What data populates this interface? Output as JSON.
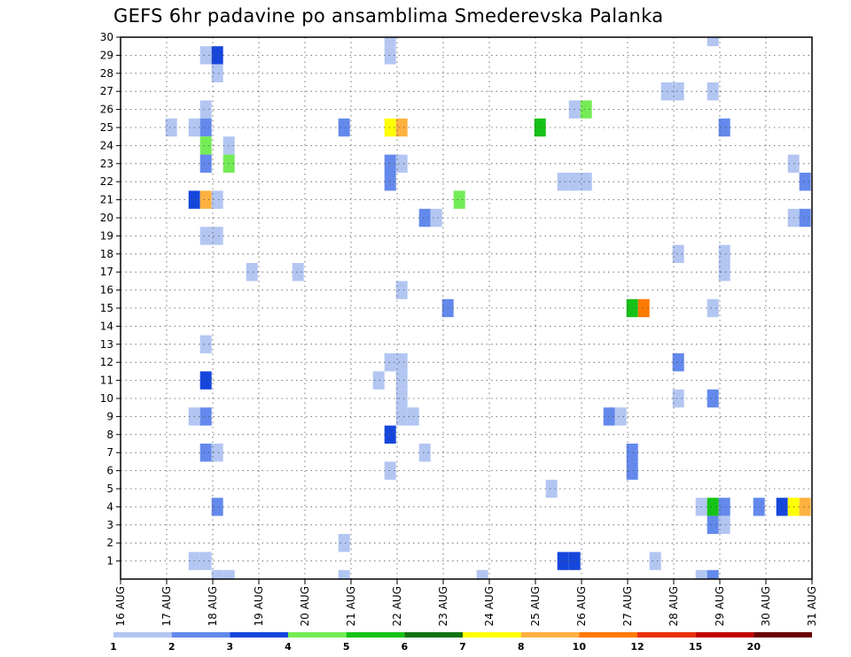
{
  "chart_data": {
    "type": "heatmap",
    "title": "GEFS 6hr padavine po ansamblima Smederevska Palanka",
    "xlabel": "",
    "ylabel": "",
    "x_ticks": [
      "16 AUG",
      "17 AUG",
      "18 AUG",
      "19 AUG",
      "20 AUG",
      "21 AUG",
      "22 AUG",
      "23 AUG",
      "24 AUG",
      "25 AUG",
      "26 AUG",
      "27 AUG",
      "28 AUG",
      "29 AUG",
      "30 AUG",
      "31 AUG"
    ],
    "y_ticks": [
      1,
      2,
      3,
      4,
      5,
      6,
      7,
      8,
      9,
      10,
      11,
      12,
      13,
      14,
      15,
      16,
      17,
      18,
      19,
      20,
      21,
      22,
      23,
      24,
      25,
      26,
      27,
      28,
      29,
      30
    ],
    "xlim_day": [
      16,
      31
    ],
    "ylim": [
      0,
      30
    ],
    "grid": true,
    "colorbar": {
      "position": "bottom",
      "levels": [
        1,
        2,
        3,
        4,
        5,
        6,
        7,
        8,
        10,
        12,
        15,
        20
      ],
      "colors": [
        "#b3c6f2",
        "#6389ec",
        "#1546dc",
        "#74ec56",
        "#15c316",
        "#127212",
        "#ffff00",
        "#ffb140",
        "#ff7a00",
        "#e8300c",
        "#c00000",
        "#6b0000"
      ],
      "labels": [
        "1",
        "2",
        "3",
        "4",
        "5",
        "6",
        "7",
        "8",
        "10",
        "12",
        "15",
        "20"
      ]
    },
    "cells": [
      {
        "day": 17.1,
        "member": 25,
        "value": 1.5
      },
      {
        "day": 17.6,
        "member": 25,
        "value": 1.5
      },
      {
        "day": 17.6,
        "member": 9,
        "value": 1.5
      },
      {
        "day": 17.6,
        "member": 1,
        "value": 1.5
      },
      {
        "day": 17.6,
        "member": 21,
        "value": 3.5
      },
      {
        "day": 17.85,
        "member": 26,
        "value": 1.5
      },
      {
        "day": 17.85,
        "member": 25,
        "value": 2.5
      },
      {
        "day": 17.85,
        "member": 24,
        "value": 4.5
      },
      {
        "day": 17.85,
        "member": 23,
        "value": 2.5
      },
      {
        "day": 17.85,
        "member": 21,
        "value": 8.5
      },
      {
        "day": 17.85,
        "member": 19,
        "value": 1.5
      },
      {
        "day": 17.85,
        "member": 13,
        "value": 1.5
      },
      {
        "day": 17.85,
        "member": 11,
        "value": 3.5
      },
      {
        "day": 17.85,
        "member": 9,
        "value": 2.5
      },
      {
        "day": 17.85,
        "member": 7,
        "value": 2.5
      },
      {
        "day": 17.85,
        "member": 1,
        "value": 1.5
      },
      {
        "day": 17.85,
        "member": 29,
        "value": 1.5
      },
      {
        "day": 18.1,
        "member": 29,
        "value": 3.5
      },
      {
        "day": 18.1,
        "member": 28,
        "value": 1.5
      },
      {
        "day": 18.1,
        "member": 21,
        "value": 1.5
      },
      {
        "day": 18.1,
        "member": 19,
        "value": 1.5
      },
      {
        "day": 18.1,
        "member": 7,
        "value": 1.5
      },
      {
        "day": 18.1,
        "member": 4,
        "value": 2.5
      },
      {
        "day": 18.1,
        "member": 0,
        "value": 1.5
      },
      {
        "day": 18.35,
        "member": 24,
        "value": 1.5
      },
      {
        "day": 18.35,
        "member": 23,
        "value": 4.5
      },
      {
        "day": 18.35,
        "member": 0,
        "value": 1.5
      },
      {
        "day": 18.85,
        "member": 17,
        "value": 1.5
      },
      {
        "day": 19.85,
        "member": 17,
        "value": 1.5
      },
      {
        "day": 20.85,
        "member": 25,
        "value": 2.5
      },
      {
        "day": 20.85,
        "member": 2,
        "value": 1.5
      },
      {
        "day": 20.85,
        "member": 0,
        "value": 1.5
      },
      {
        "day": 21.6,
        "member": 11,
        "value": 1.5
      },
      {
        "day": 21.85,
        "member": 30,
        "value": 1.5
      },
      {
        "day": 21.85,
        "member": 29,
        "value": 1.5
      },
      {
        "day": 21.85,
        "member": 25,
        "value": 7.5
      },
      {
        "day": 21.85,
        "member": 23,
        "value": 2.5
      },
      {
        "day": 21.85,
        "member": 22,
        "value": 2.5
      },
      {
        "day": 21.85,
        "member": 12,
        "value": 1.5
      },
      {
        "day": 21.85,
        "member": 8,
        "value": 3.5
      },
      {
        "day": 21.85,
        "member": 6,
        "value": 1.5
      },
      {
        "day": 22.1,
        "member": 25,
        "value": 9
      },
      {
        "day": 22.1,
        "member": 23,
        "value": 1.5
      },
      {
        "day": 22.1,
        "member": 16,
        "value": 1.5
      },
      {
        "day": 22.1,
        "member": 12,
        "value": 1.5
      },
      {
        "day": 22.1,
        "member": 11,
        "value": 1.5
      },
      {
        "day": 22.1,
        "member": 10,
        "value": 1.5
      },
      {
        "day": 22.1,
        "member": 9,
        "value": 1.5
      },
      {
        "day": 22.35,
        "member": 9,
        "value": 1.5
      },
      {
        "day": 22.6,
        "member": 20,
        "value": 2.5
      },
      {
        "day": 22.6,
        "member": 7,
        "value": 1.5
      },
      {
        "day": 22.85,
        "member": 20,
        "value": 1.5
      },
      {
        "day": 23.1,
        "member": 15,
        "value": 2.5
      },
      {
        "day": 23.35,
        "member": 21,
        "value": 4.5
      },
      {
        "day": 23.85,
        "member": 0,
        "value": 1.5
      },
      {
        "day": 25.1,
        "member": 25,
        "value": 5.5
      },
      {
        "day": 25.35,
        "member": 5,
        "value": 1.5
      },
      {
        "day": 25.6,
        "member": 22,
        "value": 1.5
      },
      {
        "day": 25.6,
        "member": 1,
        "value": 3.5
      },
      {
        "day": 25.85,
        "member": 26,
        "value": 1.5
      },
      {
        "day": 25.85,
        "member": 22,
        "value": 1.5
      },
      {
        "day": 25.85,
        "member": 1,
        "value": 3.5
      },
      {
        "day": 26.1,
        "member": 26,
        "value": 4.5
      },
      {
        "day": 26.1,
        "member": 22,
        "value": 1.5
      },
      {
        "day": 26.6,
        "member": 9,
        "value": 2.5
      },
      {
        "day": 26.85,
        "member": 9,
        "value": 1.5
      },
      {
        "day": 27.1,
        "member": 15,
        "value": 5.5
      },
      {
        "day": 27.1,
        "member": 7,
        "value": 2.5
      },
      {
        "day": 27.1,
        "member": 6,
        "value": 2.5
      },
      {
        "day": 27.35,
        "member": 15,
        "value": 10.5
      },
      {
        "day": 27.6,
        "member": 1,
        "value": 1.5
      },
      {
        "day": 27.85,
        "member": 27,
        "value": 1.5
      },
      {
        "day": 28.1,
        "member": 27,
        "value": 1.5
      },
      {
        "day": 28.1,
        "member": 18,
        "value": 1.5
      },
      {
        "day": 28.1,
        "member": 12,
        "value": 2.5
      },
      {
        "day": 28.1,
        "member": 10,
        "value": 1.5
      },
      {
        "day": 28.6,
        "member": 4,
        "value": 1.5
      },
      {
        "day": 28.6,
        "member": 0,
        "value": 1.5
      },
      {
        "day": 28.85,
        "member": 30,
        "value": 1.5
      },
      {
        "day": 28.85,
        "member": 27,
        "value": 1.5
      },
      {
        "day": 28.85,
        "member": 15,
        "value": 1.5
      },
      {
        "day": 28.85,
        "member": 10,
        "value": 2.5
      },
      {
        "day": 28.85,
        "member": 4,
        "value": 5.5
      },
      {
        "day": 28.85,
        "member": 3,
        "value": 2.5
      },
      {
        "day": 28.85,
        "member": 0,
        "value": 2.5
      },
      {
        "day": 29.1,
        "member": 25,
        "value": 2.5
      },
      {
        "day": 29.1,
        "member": 18,
        "value": 1.5
      },
      {
        "day": 29.1,
        "member": 17,
        "value": 1.5
      },
      {
        "day": 29.1,
        "member": 4,
        "value": 2.5
      },
      {
        "day": 29.1,
        "member": 3,
        "value": 1.5
      },
      {
        "day": 29.85,
        "member": 4,
        "value": 2.5
      },
      {
        "day": 30.35,
        "member": 4,
        "value": 3.5
      },
      {
        "day": 30.6,
        "member": 23,
        "value": 1.5
      },
      {
        "day": 30.6,
        "member": 20,
        "value": 1.5
      },
      {
        "day": 30.6,
        "member": 4,
        "value": 7.5
      },
      {
        "day": 30.85,
        "member": 22,
        "value": 2.5
      },
      {
        "day": 30.85,
        "member": 20,
        "value": 2.5
      },
      {
        "day": 30.85,
        "member": 4,
        "value": 9
      }
    ]
  }
}
